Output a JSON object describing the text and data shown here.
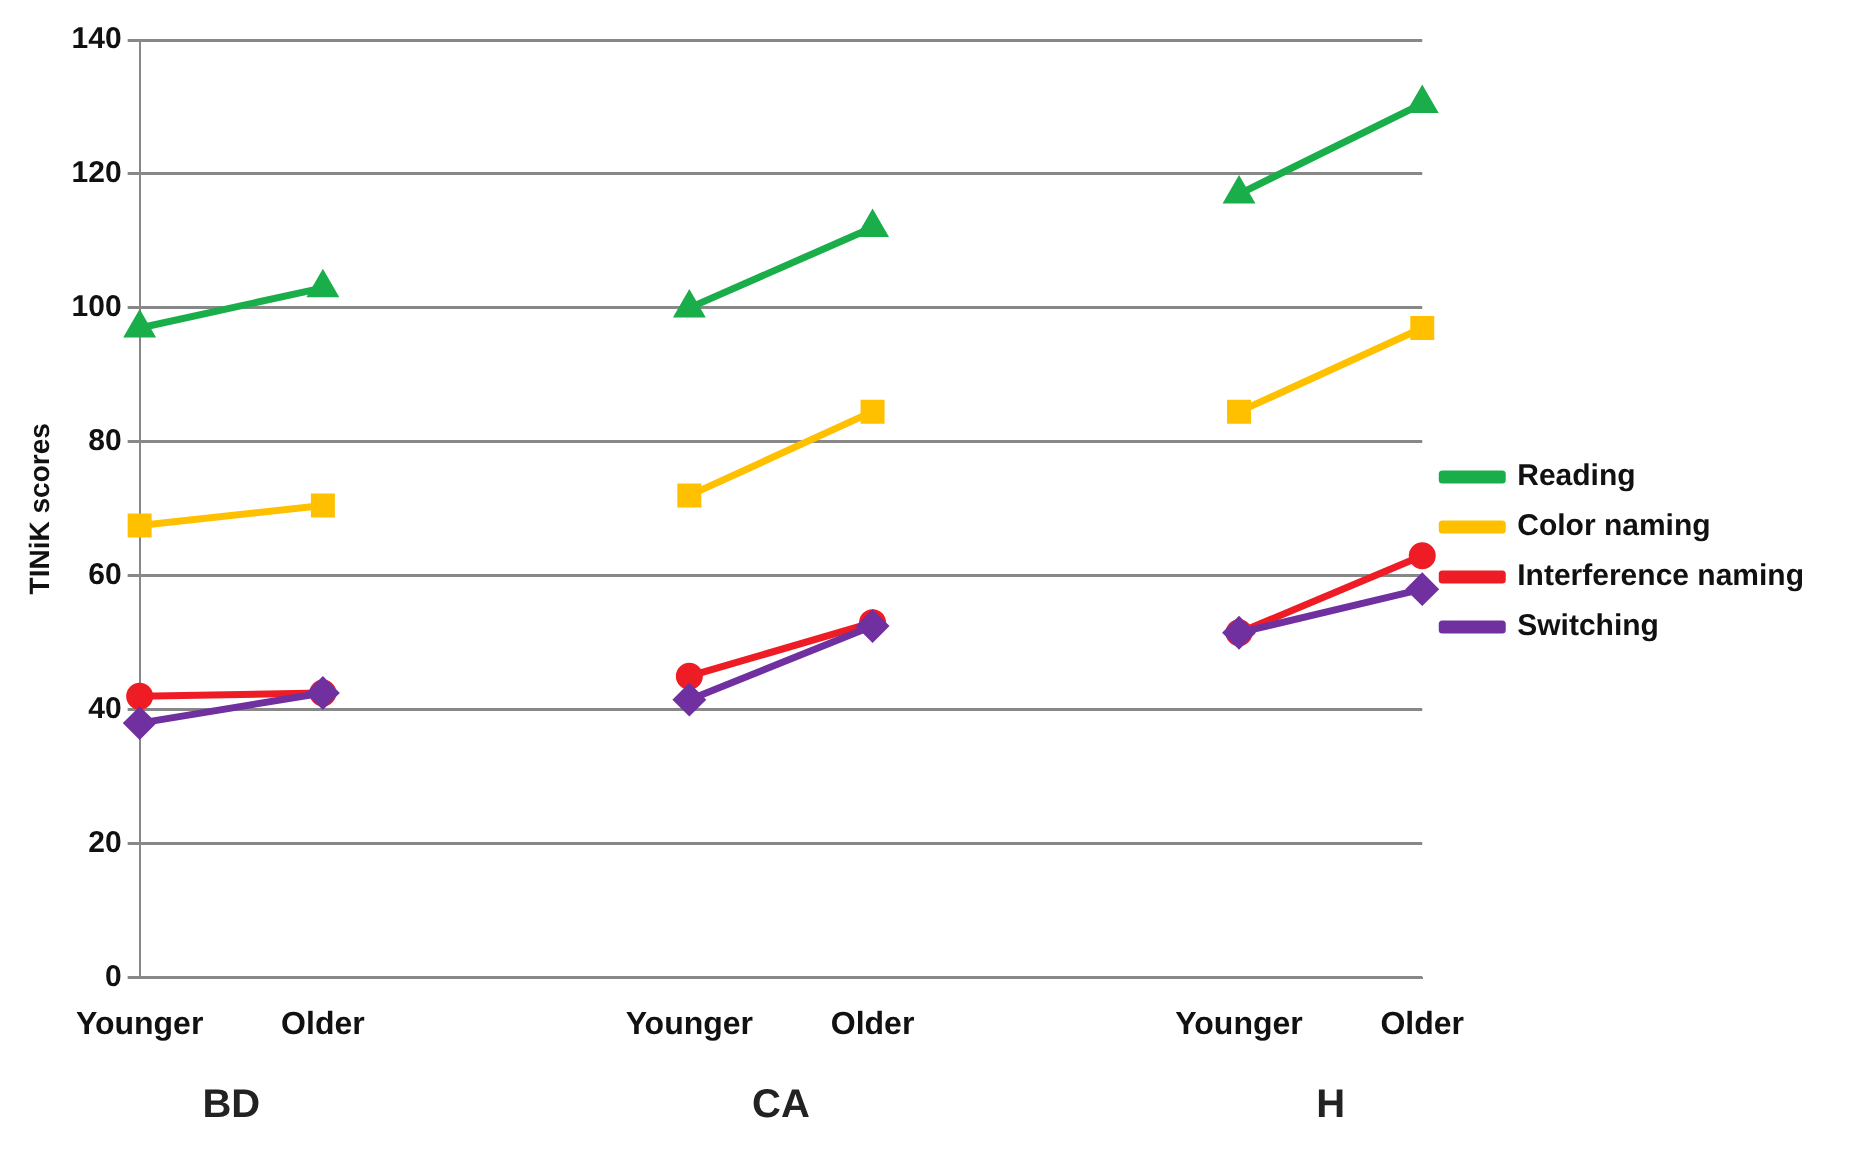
{
  "chart_data": {
    "type": "line",
    "ylabel": "TINiK scores",
    "categories": [
      "Younger",
      "Older",
      null,
      "Younger",
      "Older",
      null,
      "Younger",
      "Older"
    ],
    "series": [
      {
        "name": "Reading",
        "color": "#1aae4a",
        "marker": "triangle",
        "values": [
          97,
          103,
          null,
          100,
          112,
          null,
          117,
          130.5
        ]
      },
      {
        "name": "Color naming",
        "color": "#ffc000",
        "marker": "square",
        "values": [
          67.5,
          70.5,
          null,
          72,
          84.5,
          null,
          84.5,
          97
        ]
      },
      {
        "name": "Interference naming",
        "color": "#ee1c25",
        "marker": "circle",
        "values": [
          42,
          42.5,
          null,
          45,
          53,
          null,
          51.5,
          63
        ]
      },
      {
        "name": "Switching",
        "color": "#7030a0",
        "marker": "diamond",
        "values": [
          38,
          42.5,
          null,
          41.5,
          52.5,
          null,
          51.5,
          58
        ]
      }
    ],
    "annotations": [
      "BD",
      "CA",
      "H"
    ],
    "ylim": [
      0,
      140
    ],
    "yticks": [
      0,
      20,
      40,
      60,
      80,
      100,
      120,
      140
    ],
    "grid": "y",
    "legend": "right"
  }
}
